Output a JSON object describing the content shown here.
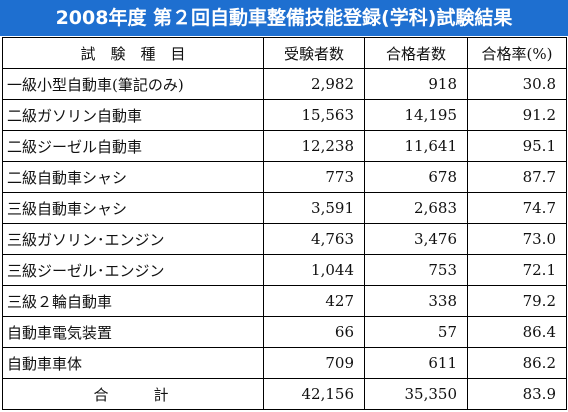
{
  "title": "2008年度 第２回自動車整備技能登録(学科)試験結果",
  "table": {
    "headers": [
      "試　験　種　目",
      "受験者数",
      "合格者数",
      "合格率(%)"
    ],
    "rows": [
      {
        "item": "一級小型自動車(筆記のみ)",
        "examinees": "2,982",
        "passed": "918",
        "rate": "30.8"
      },
      {
        "item": "二級ガソリン自動車",
        "examinees": "15,563",
        "passed": "14,195",
        "rate": "91.2"
      },
      {
        "item": "二級ジーゼル自動車",
        "examinees": "12,238",
        "passed": "11,641",
        "rate": "95.1"
      },
      {
        "item": "二級自動車シャシ",
        "examinees": "773",
        "passed": "678",
        "rate": "87.7"
      },
      {
        "item": "三級自動車シャシ",
        "examinees": "3,591",
        "passed": "2,683",
        "rate": "74.7"
      },
      {
        "item": "三級ガソリン･エンジン",
        "examinees": "4,763",
        "passed": "3,476",
        "rate": "73.0"
      },
      {
        "item": "三級ジーゼル･エンジン",
        "examinees": "1,044",
        "passed": "753",
        "rate": "72.1"
      },
      {
        "item": "三級２輪自動車",
        "examinees": "427",
        "passed": "338",
        "rate": "79.2"
      },
      {
        "item": "自動車電気装置",
        "examinees": "66",
        "passed": "57",
        "rate": "86.4"
      },
      {
        "item": "自動車車体",
        "examinees": "709",
        "passed": "611",
        "rate": "86.2"
      }
    ],
    "total": {
      "item": "合　　　計",
      "examinees": "42,156",
      "passed": "35,350",
      "rate": "83.9"
    }
  },
  "colors": {
    "banner": "#1e6fd0",
    "banner_text": "#ffffff",
    "grid": "#000000"
  }
}
